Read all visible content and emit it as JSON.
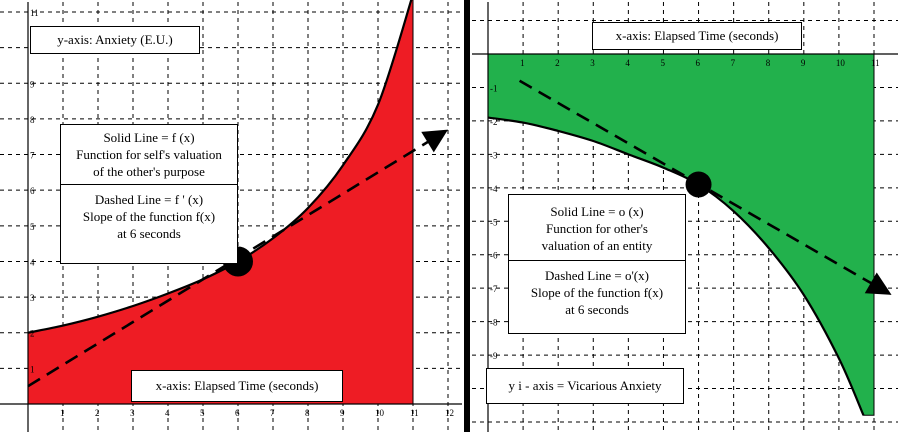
{
  "chart_data": [
    {
      "type": "area",
      "panel": "left",
      "xlim": [
        0,
        12
      ],
      "ylim": [
        0,
        11
      ],
      "x_ticks": [
        1,
        2,
        3,
        4,
        5,
        6,
        7,
        8,
        9,
        10,
        11,
        12
      ],
      "y_ticks": [
        1,
        2,
        3,
        4,
        5,
        6,
        7,
        8,
        9,
        10,
        11
      ],
      "fill_color": "#ee1c24",
      "fill_range_x": [
        0,
        11
      ],
      "series": [
        {
          "style": "solid",
          "x": [
            0,
            1,
            2,
            3,
            4,
            5,
            6,
            7,
            8,
            9,
            10,
            11
          ],
          "y": [
            2.0,
            2.2,
            2.45,
            2.75,
            3.1,
            3.5,
            4.0,
            4.65,
            5.5,
            6.7,
            8.4,
            11.5
          ]
        },
        {
          "style": "dashed-arrow",
          "x": [
            0,
            12
          ],
          "y": [
            0.5,
            7.7
          ]
        }
      ],
      "point": {
        "x": 6,
        "y": 4.0
      },
      "labels": {
        "y_axis": "y-axis: Anxiety (E.U.)",
        "x_axis": "x-axis: Elapsed Time (seconds)",
        "solid_line": [
          "Solid Line = f (x)",
          "Function for self's valuation",
          "of the other's purpose"
        ],
        "dashed_line": [
          "Dashed Line = f ' (x)",
          "Slope of the function f(x)",
          "at   6   seconds"
        ]
      }
    },
    {
      "type": "area",
      "panel": "right",
      "xlim": [
        0,
        11
      ],
      "ylim": [
        -11,
        0
      ],
      "x_ticks": [
        1,
        2,
        3,
        4,
        5,
        6,
        7,
        8,
        9,
        10,
        11
      ],
      "y_ticks": [
        -1,
        -2,
        -3,
        -4,
        -5,
        -6,
        -7,
        -8,
        -9,
        -10
      ],
      "fill_color": "#22b14c",
      "fill_range_x": [
        0,
        11
      ],
      "series": [
        {
          "style": "solid",
          "x": [
            0,
            1,
            2,
            3,
            4,
            5,
            6,
            7,
            8,
            9,
            10,
            10.7
          ],
          "y": [
            -1.9,
            -2.05,
            -2.3,
            -2.6,
            -3.0,
            -3.4,
            -3.9,
            -4.7,
            -5.8,
            -7.2,
            -9.1,
            -10.8
          ]
        },
        {
          "style": "dashed-arrow",
          "x": [
            0.9,
            11.5
          ],
          "y": [
            -0.8,
            -7.2
          ]
        }
      ],
      "point": {
        "x": 6,
        "y": -3.9
      },
      "labels": {
        "x_axis": "x-axis: Elapsed Time (seconds)",
        "y_axis": "y i - axis = Vicarious Anxiety",
        "solid_line": [
          "Solid Line = o (x)",
          "Function for other's",
          "valuation of an entity"
        ],
        "dashed_line": [
          "Dashed Line =  o'(x)",
          "Slope of the function f(x)",
          "at   6   seconds"
        ]
      }
    }
  ]
}
